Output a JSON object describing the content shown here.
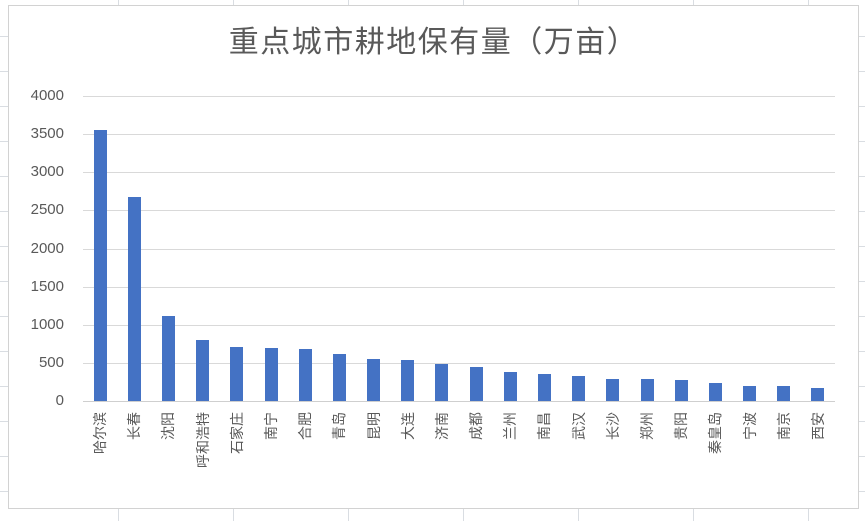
{
  "chart_data": {
    "type": "bar",
    "title": "重点城市耕地保有量（万亩）",
    "categories": [
      "哈尔滨",
      "长春",
      "沈阳",
      "呼和浩特",
      "石家庄",
      "南宁",
      "合肥",
      "青岛",
      "昆明",
      "大连",
      "济南",
      "成都",
      "兰州",
      "南昌",
      "武汉",
      "长沙",
      "郑州",
      "贵阳",
      "秦皇岛",
      "宁波",
      "南京",
      "西安"
    ],
    "values": [
      3550,
      2670,
      1120,
      800,
      705,
      690,
      685,
      615,
      555,
      540,
      485,
      450,
      375,
      355,
      330,
      295,
      290,
      270,
      235,
      200,
      195,
      175
    ],
    "xlabel": "",
    "ylabel": "",
    "ylim": [
      0,
      4000
    ],
    "ytick_step": 500,
    "ytick_labels": [
      "0",
      "500",
      "1000",
      "1500",
      "2000",
      "2500",
      "3000",
      "3500",
      "4000"
    ],
    "grid": "horizontal",
    "legend": "none",
    "bar_color": "#4472C4",
    "text_color": "#595959",
    "gridline_color": "#D9D9D9"
  }
}
